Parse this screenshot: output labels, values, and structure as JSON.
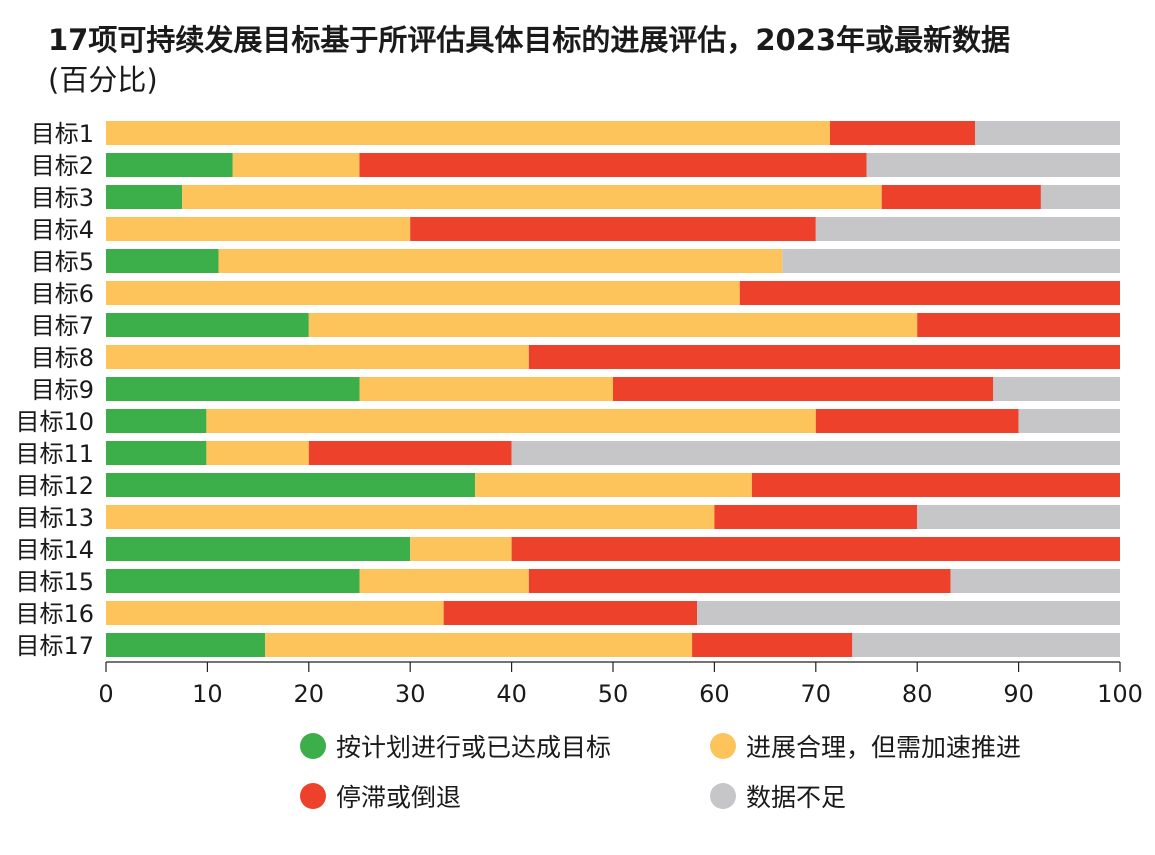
{
  "chart_data": {
    "type": "bar",
    "orientation": "horizontal",
    "stacked": true,
    "title": "17项可持续发展目标基于所评估具体目标的进展评估，2023年或最新数据",
    "subtitle": "(百分比)",
    "categories": [
      "目标1",
      "目标2",
      "目标3",
      "目标4",
      "目标5",
      "目标6",
      "目标7",
      "目标8",
      "目标9",
      "目标10",
      "目标11",
      "目标12",
      "目标13",
      "目标14",
      "目标15",
      "目标16",
      "目标17"
    ],
    "series": [
      {
        "name": "按计划进行或已达成目标",
        "color": "#3daf4a",
        "values": [
          0,
          12.5,
          7.5,
          0,
          11.1,
          0,
          20,
          0,
          25,
          9.9,
          9.9,
          36.4,
          0,
          30,
          25,
          0,
          15.7
        ]
      },
      {
        "name": "进展合理，但需加速推进",
        "color": "#fdc45c",
        "values": [
          71.4,
          12.5,
          69,
          30,
          55.6,
          62.5,
          60,
          41.7,
          25,
          60.1,
          10.1,
          27.3,
          60,
          10,
          16.7,
          33.3,
          42.1
        ]
      },
      {
        "name": "停滞或倒退",
        "color": "#ee412c",
        "values": [
          14.3,
          50,
          15.7,
          40,
          0,
          37.5,
          20,
          58.3,
          37.5,
          20,
          20,
          36.3,
          20,
          60,
          41.6,
          25,
          15.8
        ]
      },
      {
        "name": "数据不足",
        "color": "#c6c6c8",
        "values": [
          14.3,
          25,
          7.8,
          30,
          33.3,
          0,
          0,
          0,
          12.5,
          10,
          60,
          0,
          20,
          0,
          16.7,
          41.7,
          26.4
        ]
      }
    ],
    "xlim": [
      0,
      100
    ],
    "xticks": [
      "0",
      "10",
      "20",
      "30",
      "40",
      "50",
      "60",
      "70",
      "80",
      "90",
      "100"
    ],
    "legend_position": "bottom",
    "grid": false
  }
}
